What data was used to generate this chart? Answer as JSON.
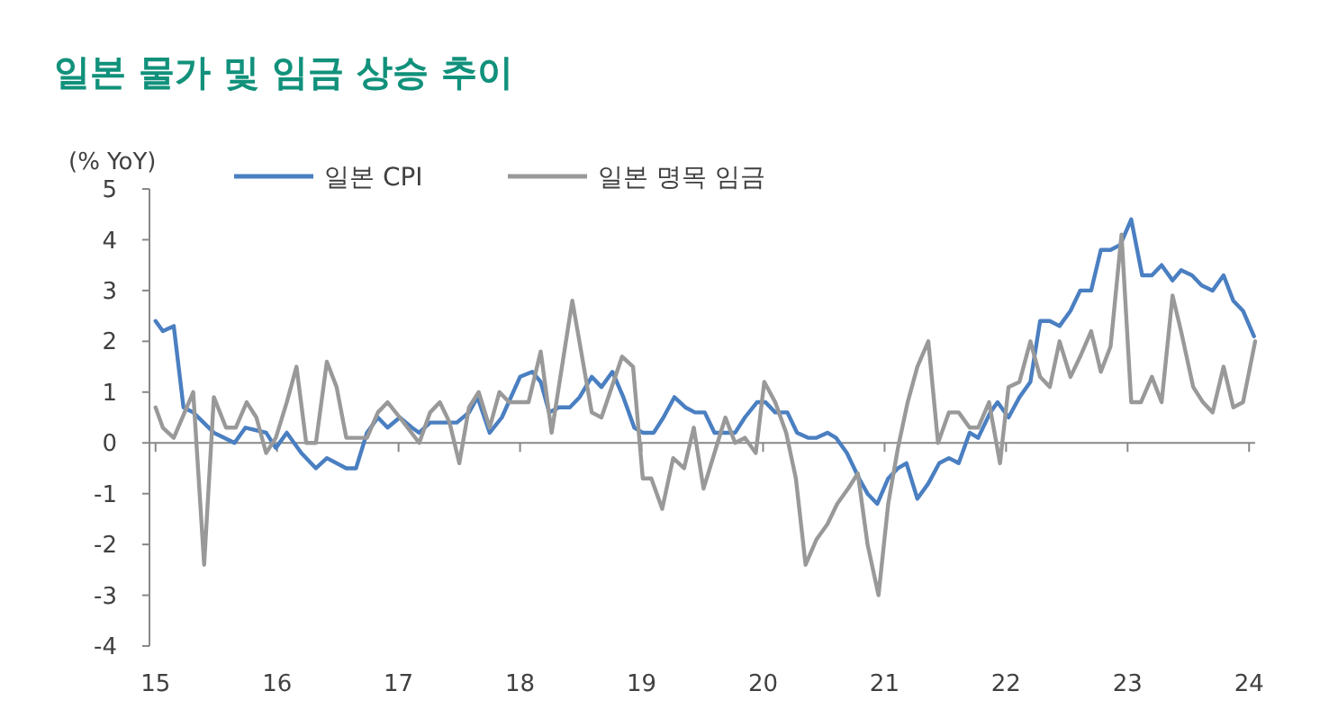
{
  "chart_data": {
    "type": "line",
    "title": "일본 물가 및 임금 상승 추이",
    "ylabel": "(% YoY)",
    "legend": "top",
    "marker": "none",
    "line_style": "solid",
    "xlim": [
      14.95,
      24.05
    ],
    "xticks": [
      15,
      16,
      17,
      18,
      19,
      20,
      21,
      22,
      23,
      24
    ],
    "ylim": [
      -4,
      5
    ],
    "yticks": [
      -4,
      -3,
      -2,
      -1,
      0,
      1,
      2,
      3,
      4,
      5
    ],
    "series": [
      {
        "name": "일본 CPI",
        "color": "#4a7fc1",
        "x": [
          15.0,
          15.06,
          15.15,
          15.23,
          15.31,
          15.48,
          15.65,
          15.74,
          15.91,
          15.99,
          16.08,
          16.2,
          16.32,
          16.41,
          16.57,
          16.65,
          16.74,
          16.83,
          16.91,
          17.01,
          17.11,
          17.17,
          17.26,
          17.48,
          17.58,
          17.65,
          17.75,
          17.85,
          18.0,
          18.1,
          18.17,
          18.24,
          18.32,
          18.41,
          18.49,
          18.59,
          18.67,
          18.76,
          18.85,
          18.94,
          19.01,
          19.1,
          19.18,
          19.27,
          19.36,
          19.44,
          19.52,
          19.6,
          19.77,
          19.85,
          19.95,
          20.02,
          20.1,
          20.2,
          20.28,
          20.37,
          20.44,
          20.53,
          20.6,
          20.69,
          20.79,
          20.86,
          20.94,
          21.03,
          21.11,
          21.18,
          21.27,
          21.36,
          21.45,
          21.53,
          21.61,
          21.7,
          21.77,
          21.87,
          21.93,
          22.02,
          22.11,
          22.2,
          22.28,
          22.36,
          22.44,
          22.53,
          22.61,
          22.7,
          22.78,
          22.86,
          22.94,
          23.03,
          23.12,
          23.2,
          23.28,
          23.37,
          23.44,
          23.53,
          23.61,
          23.7,
          23.79,
          23.87,
          23.95,
          24.04
        ],
        "values": [
          2.4,
          2.2,
          2.3,
          0.7,
          0.6,
          0.2,
          0.0,
          0.3,
          0.2,
          -0.1,
          0.2,
          -0.2,
          -0.5,
          -0.3,
          -0.5,
          -0.5,
          0.2,
          0.5,
          0.3,
          0.5,
          0.3,
          0.2,
          0.4,
          0.4,
          0.6,
          0.9,
          0.2,
          0.5,
          1.3,
          1.4,
          1.2,
          0.6,
          0.7,
          0.7,
          0.9,
          1.3,
          1.1,
          1.4,
          0.9,
          0.3,
          0.2,
          0.2,
          0.5,
          0.9,
          0.7,
          0.6,
          0.6,
          0.2,
          0.2,
          0.5,
          0.8,
          0.8,
          0.6,
          0.6,
          0.2,
          0.1,
          0.1,
          0.2,
          0.1,
          -0.2,
          -0.7,
          -1.0,
          -1.2,
          -0.7,
          -0.5,
          -0.4,
          -1.1,
          -0.8,
          -0.4,
          -0.3,
          -0.4,
          0.2,
          0.1,
          0.6,
          0.8,
          0.5,
          0.9,
          1.2,
          2.4,
          2.4,
          2.3,
          2.6,
          3.0,
          3.0,
          3.8,
          3.8,
          3.9,
          4.4,
          3.3,
          3.3,
          3.5,
          3.2,
          3.4,
          3.3,
          3.1,
          3.0,
          3.3,
          2.8,
          2.6,
          2.1
        ]
      },
      {
        "name": "일본 명목 임금",
        "color": "#999999",
        "x": [
          15.0,
          15.06,
          15.15,
          15.31,
          15.4,
          15.48,
          15.58,
          15.66,
          15.75,
          15.83,
          15.91,
          15.99,
          16.08,
          16.16,
          16.24,
          16.32,
          16.41,
          16.49,
          16.57,
          16.74,
          16.83,
          16.91,
          17.01,
          17.17,
          17.26,
          17.34,
          17.42,
          17.5,
          17.58,
          17.66,
          17.75,
          17.83,
          17.91,
          18.07,
          18.17,
          18.26,
          18.43,
          18.59,
          18.67,
          18.84,
          18.93,
          19.01,
          19.08,
          19.17,
          19.26,
          19.35,
          19.43,
          19.51,
          19.6,
          19.69,
          19.77,
          19.85,
          19.94,
          20.01,
          20.1,
          20.19,
          20.27,
          20.35,
          20.44,
          20.53,
          20.61,
          20.7,
          20.78,
          20.86,
          20.95,
          21.03,
          21.11,
          21.19,
          21.27,
          21.36,
          21.44,
          21.53,
          21.61,
          21.7,
          21.77,
          21.86,
          21.95,
          22.02,
          22.11,
          22.2,
          22.28,
          22.36,
          22.44,
          22.53,
          22.61,
          22.7,
          22.78,
          22.86,
          22.95,
          23.03,
          23.11,
          23.2,
          23.28,
          23.37,
          23.44,
          23.54,
          23.62,
          23.7,
          23.79,
          23.87,
          23.95,
          24.05
        ],
        "values": [
          0.7,
          0.3,
          0.1,
          1.0,
          -2.4,
          0.9,
          0.3,
          0.3,
          0.8,
          0.5,
          -0.2,
          0.1,
          0.8,
          1.5,
          0.0,
          0.0,
          1.6,
          1.1,
          0.1,
          0.1,
          0.6,
          0.8,
          0.5,
          0.0,
          0.6,
          0.8,
          0.4,
          -0.4,
          0.7,
          1.0,
          0.3,
          1.0,
          0.8,
          0.8,
          1.8,
          0.2,
          2.8,
          0.6,
          0.5,
          1.7,
          1.5,
          -0.7,
          -0.7,
          -1.3,
          -0.3,
          -0.5,
          0.3,
          -0.9,
          -0.2,
          0.5,
          0.0,
          0.1,
          -0.2,
          1.2,
          0.8,
          0.2,
          -0.7,
          -2.4,
          -1.9,
          -1.6,
          -1.2,
          -0.9,
          -0.6,
          -2.0,
          -3.0,
          -1.2,
          -0.1,
          0.8,
          1.5,
          2.0,
          0.0,
          0.6,
          0.6,
          0.3,
          0.3,
          0.8,
          -0.4,
          1.1,
          1.2,
          2.0,
          1.3,
          1.1,
          2.0,
          1.3,
          1.7,
          2.2,
          1.4,
          1.9,
          4.1,
          0.8,
          0.8,
          1.3,
          0.8,
          2.9,
          2.2,
          1.1,
          0.8,
          0.6,
          1.5,
          0.7,
          0.8,
          2.0
        ]
      }
    ]
  }
}
